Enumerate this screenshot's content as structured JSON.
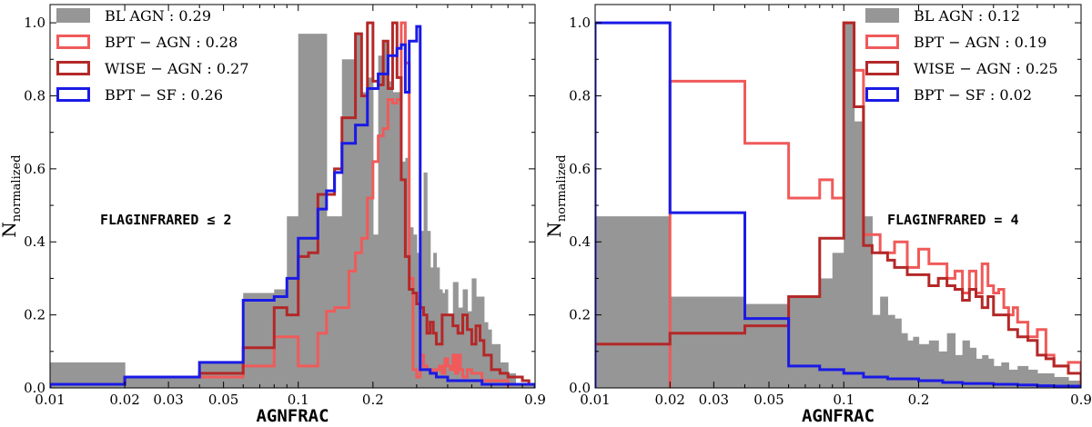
{
  "colors": {
    "bl_agn": "#969696",
    "bpt_agn": "#f05a5a",
    "wise_agn": "#b42828",
    "bpt_sf": "#1a1ae6"
  },
  "chart_data": [
    {
      "type": "histogram",
      "xlabel": "AGNFRAC",
      "ylabel": "N",
      "ylabel_subscript": "normalized",
      "x_scale": "log",
      "xlim": [
        0.01,
        0.9
      ],
      "ylim": [
        0,
        1.05
      ],
      "x_tick_labels": [
        "0.01",
        "0.02",
        "0.03",
        "0.05",
        "0.1",
        "0.2",
        "0.9"
      ],
      "x_tick_values": [
        0.01,
        0.02,
        0.03,
        0.05,
        0.1,
        0.2,
        0.9
      ],
      "y_tick_labels": [
        "0.0",
        "0.2",
        "0.4",
        "0.6",
        "0.8",
        "1.0"
      ],
      "y_tick_values": [
        0.0,
        0.2,
        0.4,
        0.6,
        0.8,
        1.0
      ],
      "annotation": "FLAGINFRARED ≤ 2",
      "legend_position": "top-left",
      "series": [
        {
          "name": "BL AGN : 0.29",
          "style": "filled",
          "edges": [
            0.01,
            0.02,
            0.04,
            0.06,
            0.08,
            0.09,
            0.1,
            0.11,
            0.13,
            0.14,
            0.15,
            0.16,
            0.17,
            0.18,
            0.19,
            0.2,
            0.21,
            0.22,
            0.23,
            0.24,
            0.25,
            0.26,
            0.27,
            0.28,
            0.29,
            0.3,
            0.31,
            0.32,
            0.33,
            0.34,
            0.35,
            0.36,
            0.37,
            0.38,
            0.39,
            0.4,
            0.42,
            0.44,
            0.46,
            0.48,
            0.5,
            0.52,
            0.54,
            0.56,
            0.58,
            0.6,
            0.65,
            0.7,
            0.75,
            0.8,
            0.9
          ],
          "values": [
            0.07,
            0.03,
            0.07,
            0.26,
            0.27,
            0.47,
            0.97,
            0.97,
            0.47,
            0.47,
            0.9,
            0.9,
            0.97,
            0.81,
            0.85,
            0.42,
            0.91,
            0.95,
            0.84,
            0.81,
            0.81,
            0.62,
            0.63,
            0.44,
            0.42,
            0.37,
            0.43,
            0.59,
            0.43,
            0.33,
            0.37,
            0.33,
            0.27,
            0.26,
            0.27,
            0.2,
            0.29,
            0.22,
            0.27,
            0.21,
            0.3,
            0.25,
            0.25,
            0.18,
            0.16,
            0.12,
            0.07,
            0.04,
            0.01,
            0.01
          ]
        },
        {
          "name": "BPT − AGN :  0.28",
          "style": "step",
          "edges": [
            0.01,
            0.02,
            0.04,
            0.06,
            0.08,
            0.09,
            0.1,
            0.11,
            0.12,
            0.13,
            0.14,
            0.15,
            0.16,
            0.17,
            0.18,
            0.19,
            0.2,
            0.21,
            0.22,
            0.23,
            0.24,
            0.25,
            0.26,
            0.27,
            0.28,
            0.29,
            0.3,
            0.31,
            0.32,
            0.33,
            0.34,
            0.35,
            0.36,
            0.37,
            0.38,
            0.39,
            0.4,
            0.41,
            0.42,
            0.43,
            0.44,
            0.45,
            0.46,
            0.48,
            0.5,
            0.55,
            0.6,
            0.7
          ],
          "values": [
            0.01,
            0.03,
            0.03,
            0.06,
            0.14,
            0.14,
            0.06,
            0.06,
            0.15,
            0.21,
            0.22,
            0.22,
            0.32,
            0.37,
            0.41,
            0.52,
            0.62,
            0.69,
            0.71,
            0.79,
            0.78,
            0.79,
            1.0,
            0.89,
            0.3,
            0.05,
            0.03,
            0.09,
            0.06,
            0.05,
            0.05,
            0.04,
            0.05,
            0.06,
            0.04,
            0.08,
            0.06,
            0.05,
            0.09,
            0.04,
            0.09,
            0.05,
            0.03,
            0.05,
            0.04,
            0.02,
            0.02
          ],
          "line_width": 3
        },
        {
          "name": "WISE − AGN :  0.27",
          "style": "step",
          "edges": [
            0.01,
            0.02,
            0.04,
            0.06,
            0.08,
            0.09,
            0.1,
            0.11,
            0.12,
            0.13,
            0.14,
            0.15,
            0.16,
            0.17,
            0.18,
            0.19,
            0.2,
            0.21,
            0.22,
            0.23,
            0.24,
            0.25,
            0.26,
            0.27,
            0.28,
            0.29,
            0.3,
            0.31,
            0.32,
            0.33,
            0.34,
            0.35,
            0.36,
            0.38,
            0.4,
            0.42,
            0.44,
            0.46,
            0.48,
            0.5,
            0.52,
            0.54,
            0.56,
            0.58,
            0.6,
            0.65,
            0.7,
            0.75,
            0.8,
            0.85,
            0.9
          ],
          "values": [
            0.01,
            0.03,
            0.04,
            0.11,
            0.22,
            0.2,
            0.36,
            0.37,
            0.53,
            0.53,
            0.6,
            0.74,
            0.74,
            0.97,
            0.8,
            1.0,
            0.84,
            0.83,
            0.95,
            0.82,
            1.0,
            0.85,
            0.57,
            0.36,
            0.27,
            0.26,
            0.23,
            0.22,
            0.2,
            0.15,
            0.18,
            0.15,
            0.12,
            0.2,
            0.2,
            0.17,
            0.15,
            0.2,
            0.16,
            0.12,
            0.17,
            0.13,
            0.09,
            0.09,
            0.05,
            0.04,
            0.03,
            0.03,
            0.02,
            0.01
          ],
          "line_width": 3
        },
        {
          "name": "BPT − SF :  0.26",
          "style": "step",
          "edges": [
            0.01,
            0.02,
            0.04,
            0.06,
            0.08,
            0.09,
            0.1,
            0.11,
            0.12,
            0.13,
            0.14,
            0.15,
            0.16,
            0.17,
            0.18,
            0.19,
            0.2,
            0.21,
            0.22,
            0.23,
            0.24,
            0.25,
            0.26,
            0.27,
            0.28,
            0.29,
            0.3,
            0.31,
            0.32,
            0.34,
            0.36,
            0.4,
            0.45,
            0.55,
            0.65,
            0.75,
            0.85,
            0.9
          ],
          "values": [
            0.01,
            0.03,
            0.07,
            0.24,
            0.25,
            0.3,
            0.41,
            0.41,
            0.49,
            0.54,
            0.59,
            0.67,
            0.67,
            0.72,
            0.72,
            0.82,
            0.82,
            0.86,
            0.86,
            0.91,
            0.91,
            0.93,
            0.94,
            0.81,
            0.95,
            0.95,
            0.99,
            0.05,
            0.05,
            0.04,
            0.03,
            0.02,
            0.02,
            0.01,
            0.01,
            0.01,
            0.01
          ],
          "line_width": 3
        }
      ]
    },
    {
      "type": "histogram",
      "xlabel": "AGNFRAC",
      "ylabel": "N",
      "ylabel_subscript": "normalized",
      "x_scale": "log",
      "xlim": [
        0.01,
        0.9
      ],
      "ylim": [
        0,
        1.05
      ],
      "x_tick_labels": [
        "0.01",
        "0.02",
        "0.03",
        "0.05",
        "0.1",
        "0.2",
        "0.9"
      ],
      "x_tick_values": [
        0.01,
        0.02,
        0.03,
        0.05,
        0.1,
        0.2,
        0.9
      ],
      "y_tick_labels": [
        "0.0",
        "0.2",
        "0.4",
        "0.6",
        "0.8",
        "1.0"
      ],
      "y_tick_values": [
        0.0,
        0.2,
        0.4,
        0.6,
        0.8,
        1.0
      ],
      "annotation": "FLAGINFRARED = 4",
      "legend_position": "top-right",
      "series": [
        {
          "name": "BL AGN : 0.12",
          "style": "filled",
          "edges": [
            0.01,
            0.02,
            0.04,
            0.06,
            0.08,
            0.09,
            0.1,
            0.11,
            0.12,
            0.13,
            0.14,
            0.15,
            0.16,
            0.17,
            0.18,
            0.19,
            0.2,
            0.22,
            0.24,
            0.26,
            0.28,
            0.3,
            0.32,
            0.34,
            0.36,
            0.38,
            0.4,
            0.43,
            0.46,
            0.5,
            0.55,
            0.6,
            0.65,
            0.7,
            0.8,
            0.9
          ],
          "values": [
            0.47,
            0.25,
            0.23,
            0.25,
            0.3,
            0.37,
            1.0,
            0.73,
            0.47,
            0.2,
            0.25,
            0.2,
            0.19,
            0.15,
            0.13,
            0.14,
            0.12,
            0.13,
            0.1,
            0.15,
            0.09,
            0.13,
            0.11,
            0.08,
            0.09,
            0.08,
            0.06,
            0.07,
            0.05,
            0.06,
            0.05,
            0.04,
            0.04,
            0.03,
            0.02
          ],
          "line_width": 0
        },
        {
          "name": "BPT − AGN :  0.19",
          "style": "step",
          "edges": [
            0.02,
            0.04,
            0.06,
            0.08,
            0.09,
            0.1,
            0.11,
            0.12,
            0.13,
            0.14,
            0.15,
            0.16,
            0.18,
            0.2,
            0.22,
            0.24,
            0.26,
            0.28,
            0.3,
            0.32,
            0.34,
            0.36,
            0.38,
            0.4,
            0.42,
            0.44,
            0.46,
            0.48,
            0.5,
            0.55,
            0.6,
            0.65,
            0.7,
            0.8,
            0.9
          ],
          "values": [
            0.84,
            0.67,
            0.52,
            0.57,
            0.52,
            1.0,
            0.87,
            0.42,
            0.42,
            0.37,
            0.37,
            0.4,
            0.33,
            0.38,
            0.34,
            0.34,
            0.3,
            0.32,
            0.26,
            0.32,
            0.26,
            0.34,
            0.28,
            0.26,
            0.27,
            0.22,
            0.2,
            0.22,
            0.18,
            0.14,
            0.16,
            0.09,
            0.06,
            0.07
          ],
          "line_width": 3
        },
        {
          "name": "WISE − AGN :  0.25",
          "style": "step",
          "edges": [
            0.01,
            0.02,
            0.04,
            0.06,
            0.08,
            0.09,
            0.1,
            0.11,
            0.12,
            0.13,
            0.14,
            0.15,
            0.16,
            0.18,
            0.2,
            0.22,
            0.24,
            0.26,
            0.28,
            0.3,
            0.32,
            0.34,
            0.36,
            0.38,
            0.4,
            0.43,
            0.46,
            0.5,
            0.55,
            0.6,
            0.65,
            0.7,
            0.8,
            0.9
          ],
          "values": [
            0.12,
            0.15,
            0.17,
            0.25,
            0.41,
            0.41,
            1.0,
            0.77,
            0.39,
            0.37,
            0.37,
            0.35,
            0.33,
            0.31,
            0.31,
            0.28,
            0.3,
            0.28,
            0.27,
            0.24,
            0.27,
            0.25,
            0.22,
            0.25,
            0.2,
            0.2,
            0.16,
            0.14,
            0.13,
            0.09,
            0.08,
            0.06,
            0.04
          ],
          "line_width": 3
        },
        {
          "name": "BPT − SF :  0.02",
          "style": "step",
          "edges": [
            0.01,
            0.02,
            0.04,
            0.06,
            0.08,
            0.1,
            0.12,
            0.15,
            0.2,
            0.25,
            0.3,
            0.4,
            0.5,
            0.6,
            0.7,
            0.9
          ],
          "values": [
            1.0,
            0.48,
            0.19,
            0.06,
            0.05,
            0.04,
            0.03,
            0.025,
            0.02,
            0.015,
            0.012,
            0.01,
            0.008,
            0.006,
            0.005
          ],
          "line_width": 3
        }
      ]
    }
  ]
}
